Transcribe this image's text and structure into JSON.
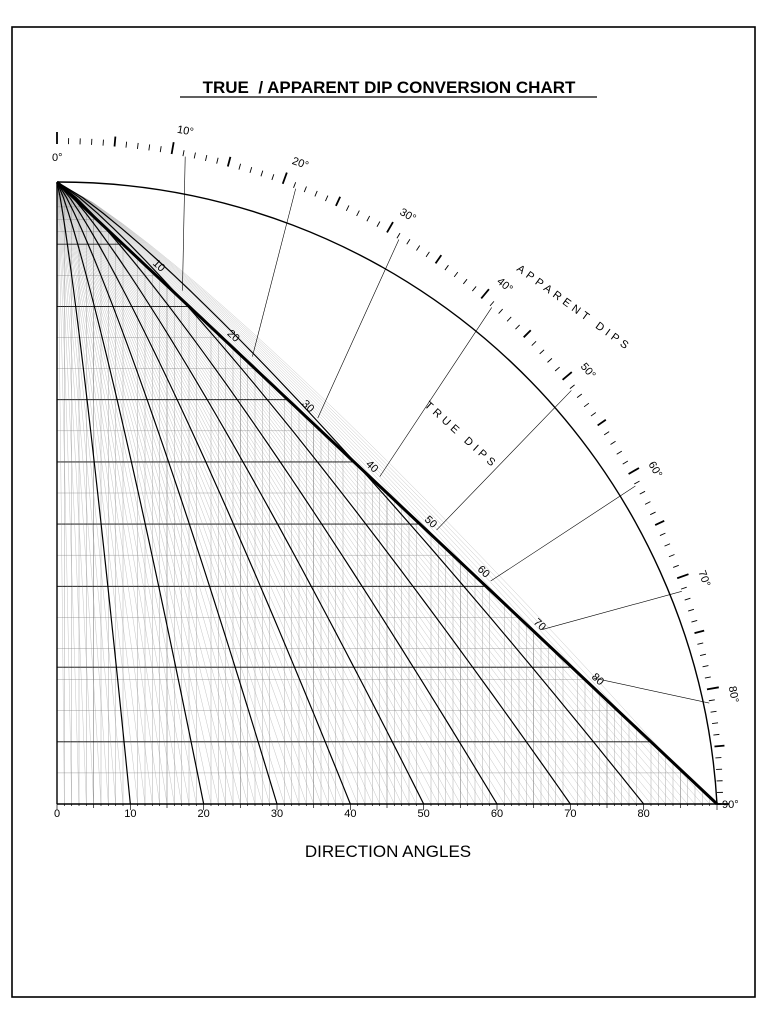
{
  "title": "TRUE  / APPARENT DIP CONVERSION CHART",
  "x_axis_label": "DIRECTION ANGLES",
  "apparent_dips_label": "APPARENT  DIPS",
  "true_dips_label": "TRUE DIPS",
  "chart_data": {
    "type": "diagram",
    "direction_angle_ticks": [
      "0",
      "10",
      "20",
      "30",
      "40",
      "50",
      "60",
      "70",
      "80"
    ],
    "apparent_dip_arc_labels": [
      "0°",
      "10°",
      "20°",
      "30°",
      "40°",
      "50°",
      "60°",
      "70°",
      "80°",
      "90°"
    ],
    "true_dip_labels": [
      "10",
      "20",
      "30",
      "40",
      "50",
      "60",
      "70",
      "80"
    ],
    "apparent_dip_values": [
      0,
      10,
      20,
      30,
      40,
      50,
      60,
      70,
      80,
      90
    ],
    "direction_angle_values": [
      0,
      10,
      20,
      30,
      40,
      50,
      60,
      70,
      80
    ],
    "true_dip_values": [
      10,
      20,
      30,
      40,
      50,
      60,
      70,
      80
    ]
  }
}
